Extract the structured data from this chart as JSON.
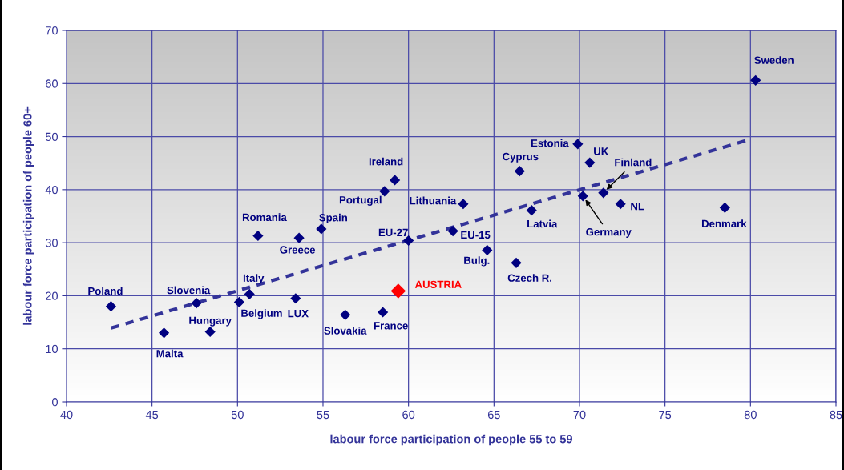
{
  "chart_data": {
    "type": "scatter",
    "xlabel": "labour force participation of people 55 to 59",
    "ylabel": "labour force participation of people 60+",
    "xlim": [
      40,
      85
    ],
    "xticks": [
      40,
      45,
      50,
      55,
      60,
      65,
      70,
      75,
      80,
      85
    ],
    "ylim": [
      0,
      70
    ],
    "yticks": [
      0,
      10,
      20,
      30,
      40,
      50,
      60,
      70
    ],
    "grid": true,
    "legend": false,
    "marker": "diamond",
    "series": [
      {
        "name": "Poland",
        "color": "#000080",
        "x": [
          42.6
        ],
        "values": [
          18.0
        ]
      },
      {
        "name": "Malta",
        "color": "#000080",
        "x": [
          45.7
        ],
        "values": [
          13.0
        ]
      },
      {
        "name": "Slovenia",
        "color": "#000080",
        "x": [
          47.6
        ],
        "values": [
          18.6
        ]
      },
      {
        "name": "Hungary",
        "color": "#000080",
        "x": [
          48.4
        ],
        "values": [
          13.2
        ]
      },
      {
        "name": "Belgium",
        "color": "#000080",
        "x": [
          50.1
        ],
        "values": [
          18.8
        ]
      },
      {
        "name": "Italy",
        "color": "#000080",
        "x": [
          50.7
        ],
        "values": [
          20.3
        ]
      },
      {
        "name": "Romania",
        "color": "#000080",
        "x": [
          51.2
        ],
        "values": [
          31.3
        ]
      },
      {
        "name": "Greece",
        "color": "#000080",
        "x": [
          53.6
        ],
        "values": [
          30.9
        ]
      },
      {
        "name": "Spain",
        "color": "#000080",
        "x": [
          54.9
        ],
        "values": [
          32.6
        ]
      },
      {
        "name": "LUX",
        "color": "#000080",
        "x": [
          53.4
        ],
        "values": [
          19.5
        ]
      },
      {
        "name": "Slovakia",
        "color": "#000080",
        "x": [
          56.3
        ],
        "values": [
          16.4
        ]
      },
      {
        "name": "France",
        "color": "#000080",
        "x": [
          58.5
        ],
        "values": [
          16.9
        ]
      },
      {
        "name": "Portugal",
        "color": "#000080",
        "x": [
          58.6
        ],
        "values": [
          39.7
        ]
      },
      {
        "name": "Ireland",
        "color": "#000080",
        "x": [
          59.2
        ],
        "values": [
          41.8
        ]
      },
      {
        "name": "EU-27",
        "color": "#000080",
        "x": [
          60.0
        ],
        "values": [
          30.4
        ]
      },
      {
        "name": "EU-15",
        "color": "#000080",
        "x": [
          62.6
        ],
        "values": [
          32.2
        ]
      },
      {
        "name": "Lithuania",
        "color": "#000080",
        "x": [
          63.2
        ],
        "values": [
          37.3
        ]
      },
      {
        "name": "Bulg.",
        "color": "#000080",
        "x": [
          64.6
        ],
        "values": [
          28.6
        ]
      },
      {
        "name": "Czech R.",
        "color": "#000080",
        "x": [
          66.3
        ],
        "values": [
          26.2
        ]
      },
      {
        "name": "Cyprus",
        "color": "#000080",
        "x": [
          66.5
        ],
        "values": [
          43.5
        ]
      },
      {
        "name": "Latvia",
        "color": "#000080",
        "x": [
          67.2
        ],
        "values": [
          36.1
        ]
      },
      {
        "name": "Estonia",
        "color": "#000080",
        "x": [
          69.9
        ],
        "values": [
          48.6
        ]
      },
      {
        "name": "UK",
        "color": "#000080",
        "x": [
          70.6
        ],
        "values": [
          45.1
        ]
      },
      {
        "name": "Germany",
        "color": "#000080",
        "x": [
          70.2
        ],
        "values": [
          38.8
        ]
      },
      {
        "name": "Finland",
        "color": "#000080",
        "x": [
          71.4
        ],
        "values": [
          39.4
        ]
      },
      {
        "name": "NL",
        "color": "#000080",
        "x": [
          72.4
        ],
        "values": [
          37.3
        ]
      },
      {
        "name": "Denmark",
        "color": "#000080",
        "x": [
          78.5
        ],
        "values": [
          36.6
        ]
      },
      {
        "name": "Sweden",
        "color": "#000080",
        "x": [
          80.3
        ],
        "values": [
          60.6
        ]
      },
      {
        "name": "AUSTRIA",
        "color": "#ff0000",
        "x": [
          59.4
        ],
        "values": [
          20.9
        ]
      },
      {
        "type": "line",
        "color": "#333399",
        "line_style": "dashed",
        "marker": "none",
        "x": [
          42.6,
          79.7
        ],
        "values": [
          13.9,
          49.2
        ]
      }
    ]
  }
}
